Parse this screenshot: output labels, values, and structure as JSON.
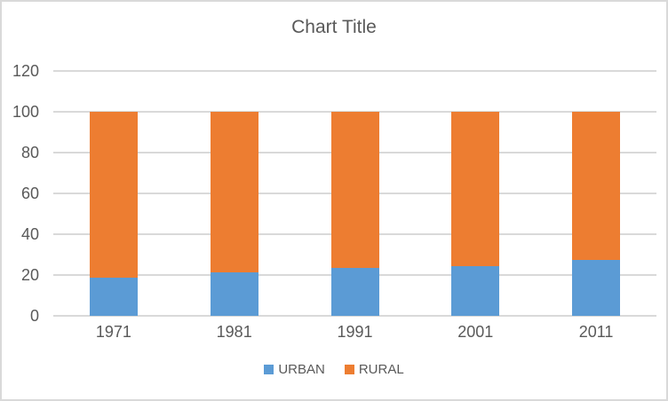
{
  "window": {
    "background": "#ffffff",
    "border_color": "#d9d9d9"
  },
  "chart_data": {
    "type": "bar",
    "stacked": true,
    "stacked_total": 100,
    "title": "Chart Title",
    "categories": [
      "1971",
      "1981",
      "1991",
      "2001",
      "2011"
    ],
    "series": [
      {
        "name": "URBAN",
        "color": "#5B9BD5",
        "values": [
          18.8,
          21.2,
          23.5,
          24.3,
          27.4
        ]
      },
      {
        "name": "RURAL",
        "color": "#ED7D31",
        "values": [
          81.2,
          78.8,
          76.5,
          75.7,
          72.6
        ]
      }
    ],
    "xlabel": "",
    "ylabel": "",
    "ylim": [
      0,
      120
    ],
    "yticks": [
      0,
      20,
      40,
      60,
      80,
      100,
      120
    ],
    "grid": true,
    "gridline_color": "#d9d9d9",
    "text_color": "#595959",
    "legend_position": "bottom"
  }
}
